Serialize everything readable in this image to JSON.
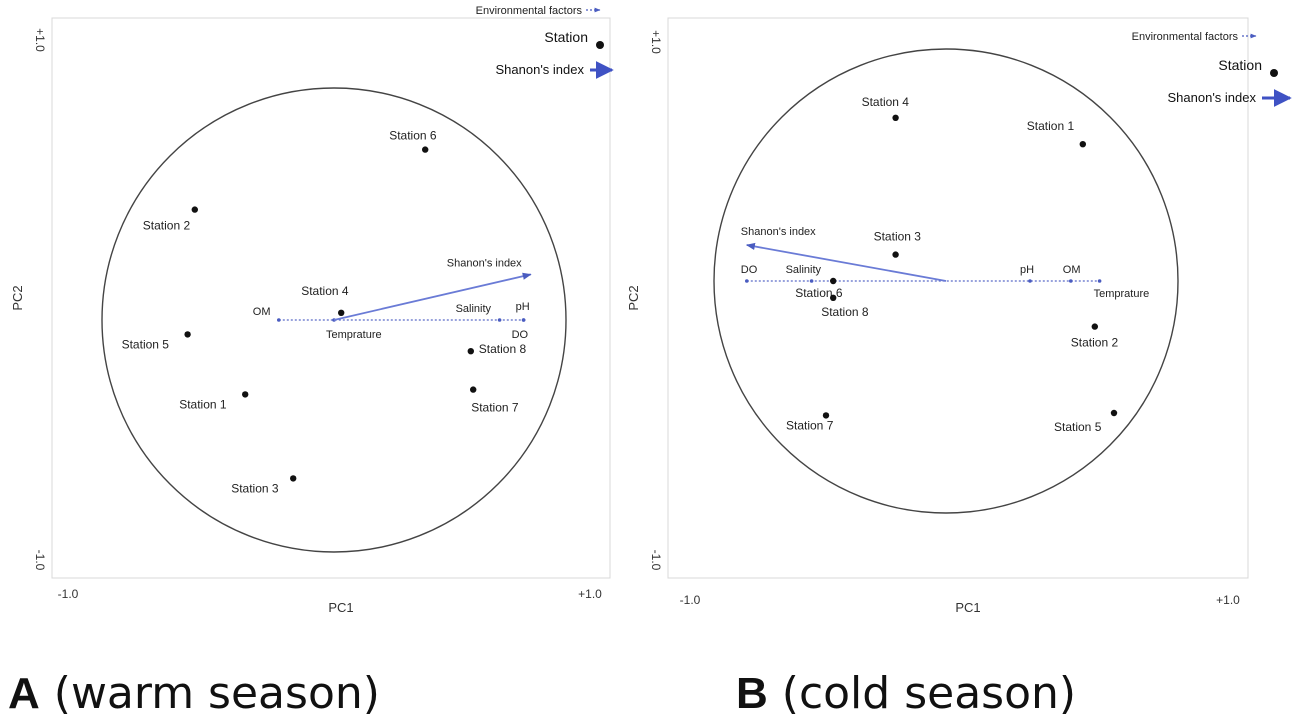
{
  "chart_data": [
    {
      "type": "scatter",
      "caption_letter": "A",
      "caption_text": "(warm season)",
      "xlabel": "PC1",
      "ylabel": "PC2",
      "xlim": [
        -1.0,
        1.0
      ],
      "ylim": [
        -1.0,
        1.0
      ],
      "x_ticks": [
        "-1.0",
        "+1.0"
      ],
      "y_ticks": [
        "-1.0",
        "+1.0"
      ],
      "legend": {
        "placement": "top-right",
        "entries": [
          "Environmental factors",
          "Station",
          "Shanon's index"
        ]
      },
      "stations": [
        {
          "label": "Station 6",
          "x": 0.38,
          "y": 0.71
        },
        {
          "label": "Station 2",
          "x": -0.58,
          "y": 0.46
        },
        {
          "label": "Station 4",
          "x": 0.03,
          "y": 0.03
        },
        {
          "label": "Station 5",
          "x": -0.61,
          "y": -0.06
        },
        {
          "label": "Station 8",
          "x": 0.57,
          "y": -0.13
        },
        {
          "label": "Station 7",
          "x": 0.58,
          "y": -0.29
        },
        {
          "label": "Station 1",
          "x": -0.37,
          "y": -0.31
        },
        {
          "label": "Station 3",
          "x": -0.17,
          "y": -0.66
        }
      ],
      "environmental_factors": [
        {
          "label": "OM",
          "x": -0.23,
          "y": 0.0
        },
        {
          "label": "Temprature",
          "x": 0.0,
          "y": 0.0
        },
        {
          "label": "Salinity",
          "x": 0.69,
          "y": 0.0
        },
        {
          "label": "pH",
          "x": 0.79,
          "y": 0.0
        },
        {
          "label": "DO",
          "x": 0.79,
          "y": 0.0
        }
      ],
      "shannon_index": {
        "label": "Shanon's index",
        "x": 0.82,
        "y": 0.19
      }
    },
    {
      "type": "scatter",
      "caption_letter": "B",
      "caption_text": "(cold season)",
      "xlabel": "PC1",
      "ylabel": "PC2",
      "xlim": [
        -1.0,
        1.0
      ],
      "ylim": [
        -1.0,
        1.0
      ],
      "x_ticks": [
        "-1.0",
        "+1.0"
      ],
      "y_ticks": [
        "-1.0",
        "+1.0"
      ],
      "legend": {
        "placement": "top-right",
        "entries": [
          "Environmental factors",
          "Station",
          "Shanon's index"
        ]
      },
      "stations": [
        {
          "label": "Station 4",
          "x": -0.21,
          "y": 0.68
        },
        {
          "label": "Station 1",
          "x": 0.57,
          "y": 0.57
        },
        {
          "label": "Station 3",
          "x": -0.21,
          "y": 0.11
        },
        {
          "label": "Station 6",
          "x": -0.47,
          "y": 0.0
        },
        {
          "label": "Station 8",
          "x": -0.47,
          "y": -0.07
        },
        {
          "label": "Station 2",
          "x": 0.62,
          "y": -0.19
        },
        {
          "label": "Station 7",
          "x": -0.5,
          "y": -0.56
        },
        {
          "label": "Station 5",
          "x": 0.7,
          "y": -0.55
        }
      ],
      "environmental_factors": [
        {
          "label": "DO",
          "x": -0.83,
          "y": 0.0
        },
        {
          "label": "Salinity",
          "x": -0.56,
          "y": 0.0
        },
        {
          "label": "pH",
          "x": 0.35,
          "y": 0.0
        },
        {
          "label": "OM",
          "x": 0.52,
          "y": 0.0
        },
        {
          "label": "Temprature",
          "x": 0.64,
          "y": 0.0
        }
      ],
      "shannon_index": {
        "label": "Shanon's index",
        "x": -0.83,
        "y": 0.15
      }
    }
  ]
}
